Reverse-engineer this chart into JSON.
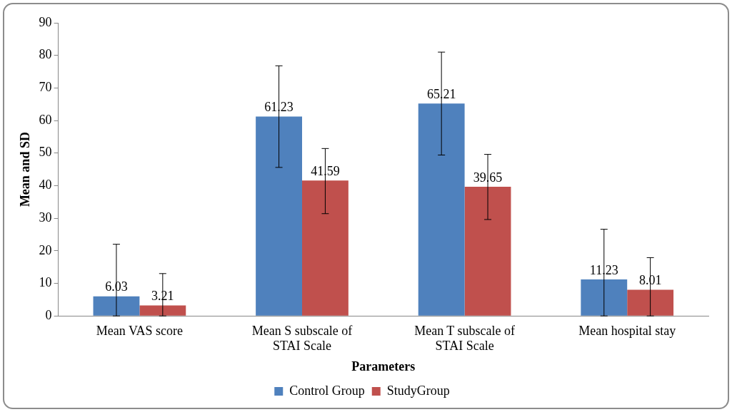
{
  "chart_data": {
    "type": "bar",
    "xlabel": "Parameters",
    "ylabel": "Mean and SD",
    "categories": [
      "Mean VAS score",
      "Mean S subscale of STAI Scale",
      "Mean T subscale of STAI Scale",
      "Mean hospital stay"
    ],
    "series": [
      {
        "name": "Control Group",
        "color": "#4f81bd",
        "values": [
          6.03,
          61.23,
          65.21,
          11.23
        ],
        "errors": [
          [
            0,
            22
          ],
          [
            45.6,
            76.8
          ],
          [
            49.4,
            81
          ],
          [
            0,
            26.6
          ]
        ]
      },
      {
        "name": "StudyGroup",
        "color": "#c0504d",
        "values": [
          3.21,
          41.59,
          39.65,
          8.01
        ],
        "errors": [
          [
            0,
            13
          ],
          [
            31.4,
            51.4
          ],
          [
            29.6,
            49.6
          ],
          [
            0,
            17.9
          ]
        ]
      }
    ],
    "ylim": [
      0,
      90
    ],
    "yticks": [
      0,
      10,
      20,
      30,
      40,
      50,
      60,
      70,
      80,
      90
    ],
    "grid": false,
    "legend": "bottom",
    "data_labels": true
  }
}
